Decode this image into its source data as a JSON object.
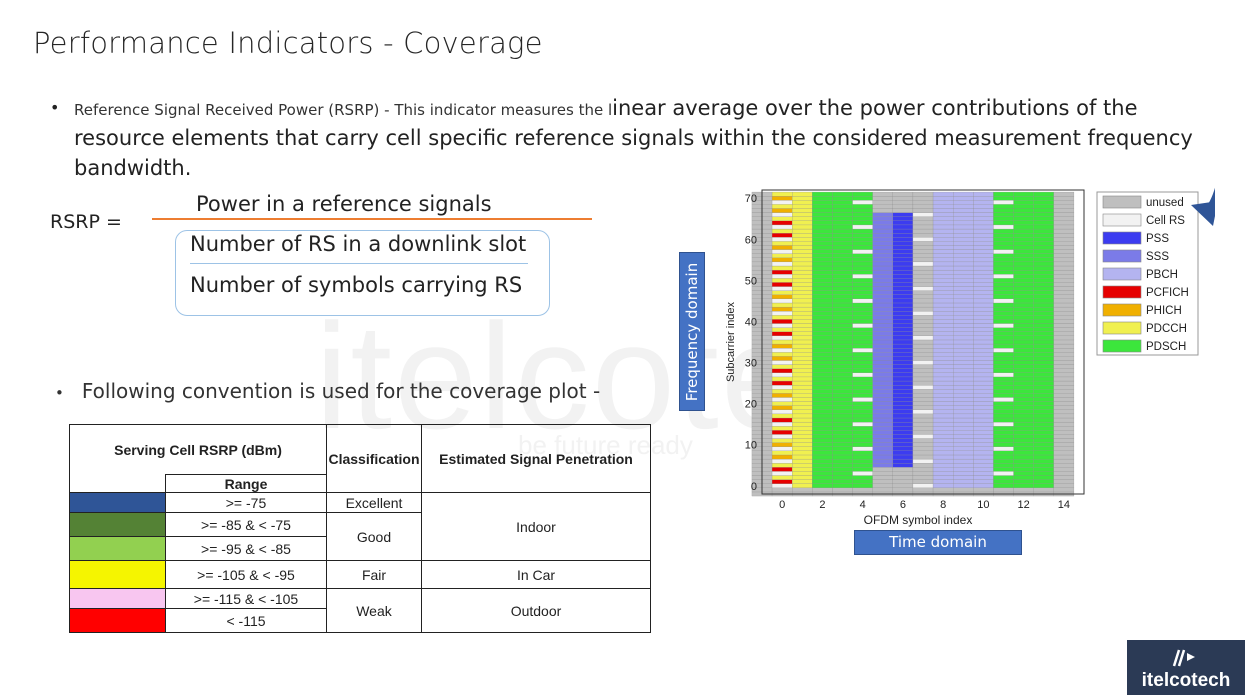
{
  "title": "Performance Indicators - Coverage",
  "bullet1": {
    "small_text": "Reference Signal Received Power (RSRP) - This indicator measures the l",
    "big_text": "inear average over the power contributions of the resource elements that carry cell specific reference signals within the considered measurement frequency bandwidth."
  },
  "formula": {
    "lhs": "RSRP =",
    "numerator": "Power in a reference signals",
    "denominator_top": "Number of RS in a downlink slot",
    "denominator_bottom": "Number of symbols carrying RS"
  },
  "bullet2": "Following convention is used for the coverage plot -",
  "table": {
    "header_serving": "Serving Cell RSRP (dBm)",
    "header_range": "Range",
    "header_class": "Classification",
    "header_penetration": "Estimated Signal Penetration",
    "rows": [
      {
        "color": "#2f5597",
        "range": ">= -75"
      },
      {
        "color": "#548235",
        "range": ">= -85 & < -75"
      },
      {
        "color": "#92d050",
        "range": ">= -95 & < -85"
      },
      {
        "color": "#f5f500",
        "range": ">= -105 & < -95"
      },
      {
        "color": "#f8c6f0",
        "range": ">= -115 & < -105"
      },
      {
        "color": "#ff0000",
        "range": "< -115"
      }
    ],
    "classes": [
      "Excellent",
      "Good",
      "Fair",
      "Weak"
    ],
    "penetration": [
      "Indoor",
      "In Car",
      "Outdoor"
    ]
  },
  "chart_data": {
    "type": "heatmap",
    "xlabel": "OFDM symbol index",
    "ylabel": "Subcarrier index",
    "x_ticks": [
      "0",
      "2",
      "4",
      "6",
      "8",
      "10",
      "12",
      "14"
    ],
    "y_ticks": [
      "0",
      "10",
      "20",
      "30",
      "40",
      "50",
      "60",
      "70"
    ],
    "xlim": [
      -1,
      15
    ],
    "ylim": [
      -2,
      72
    ],
    "legend": [
      {
        "name": "unused",
        "color": "#bfbfbf"
      },
      {
        "name": "Cell RS",
        "color": "#f2f2f2"
      },
      {
        "name": "PSS",
        "color": "#3c3cf0"
      },
      {
        "name": "SSS",
        "color": "#7b7be8"
      },
      {
        "name": "PBCH",
        "color": "#b4b4f0"
      },
      {
        "name": "PCFICH",
        "color": "#e60000"
      },
      {
        "name": "PHICH",
        "color": "#f0b000"
      },
      {
        "name": "PDCCH",
        "color": "#f0f050"
      },
      {
        "name": "PDSCH",
        "color": "#3ce63c"
      }
    ],
    "legend_position": "right"
  },
  "axis_boxes": {
    "frequency": "Frequency domain",
    "time": "Time domain"
  },
  "watermark": {
    "brand": "itelcotech",
    "tagline": "be future ready"
  },
  "logo_text": "itelcotech"
}
